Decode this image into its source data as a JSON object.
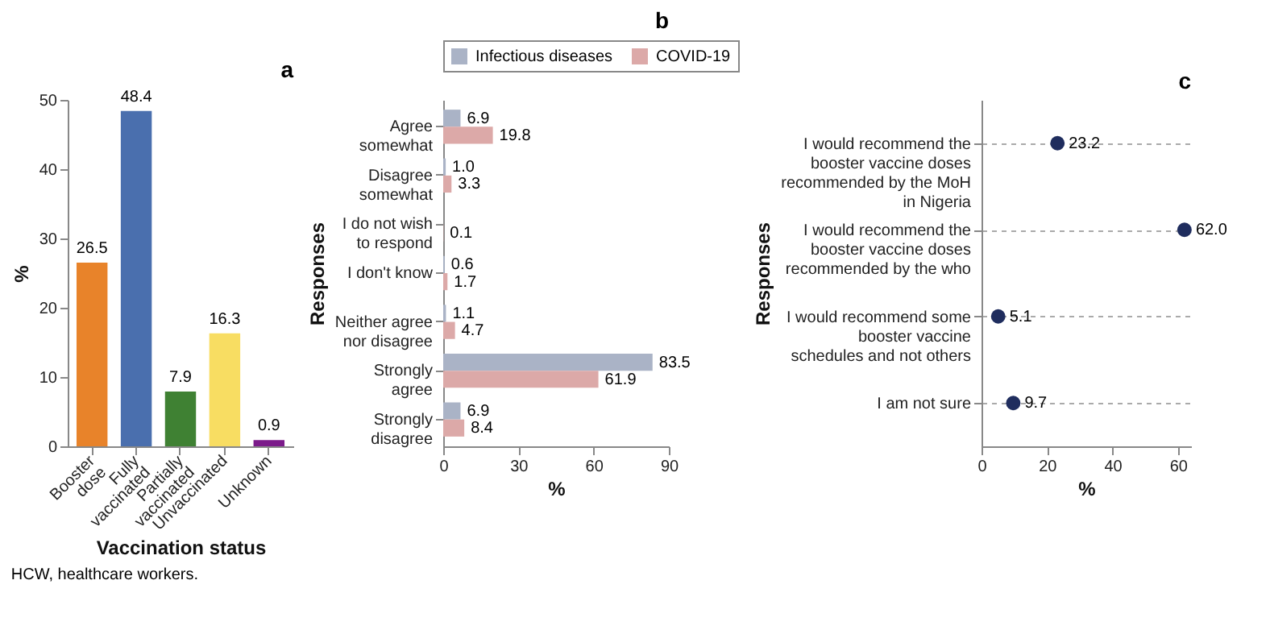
{
  "chart_data": [
    {
      "type": "bar",
      "title": "a",
      "xlabel": "Vaccination status",
      "ylabel": "%",
      "categories": [
        "Booster dose",
        "Fully vaccinated",
        "Partially vaccinated",
        "Unvaccinated",
        "Unknown"
      ],
      "values": [
        26.5,
        48.4,
        7.9,
        16.3,
        0.9
      ],
      "colors": [
        "#e8832a",
        "#4a6fae",
        "#3f8133",
        "#f8dd62",
        "#7b1a8a"
      ],
      "ylim": [
        0,
        50
      ],
      "yticks": [
        0,
        10,
        20,
        30,
        40,
        50
      ],
      "data_labels": true,
      "annotations": [
        "HCW, healthcare workers."
      ]
    },
    {
      "type": "bar",
      "orientation": "horizontal",
      "title": "b",
      "xlabel": "%",
      "ylabel": "Responses",
      "categories": [
        "Agree somewhat",
        "Disagree somewhat",
        "I do not wish to respond",
        "I don't know",
        "Neither agree nor disagree",
        "Strongly agree",
        "Strongly disagree"
      ],
      "series": [
        {
          "name": "Infectious diseases",
          "color": "#aab3c6",
          "values": [
            6.9,
            1.0,
            null,
            0.6,
            1.1,
            83.5,
            6.9
          ],
          "value_labels": [
            "6.9",
            "1.0",
            null,
            "0.6",
            "1.1",
            "83.5",
            "6.9"
          ]
        },
        {
          "name": "COVID-19",
          "color": "#dca9a8",
          "values": [
            19.8,
            3.3,
            0.1,
            1.7,
            4.7,
            61.9,
            8.4
          ],
          "value_labels": [
            "19.8",
            "3.3",
            "0.1",
            "1.7",
            "4.7",
            "61.9",
            "8.4"
          ]
        }
      ],
      "xlim": [
        0,
        90
      ],
      "xticks": [
        0,
        30,
        60,
        90
      ],
      "legend": "top right"
    },
    {
      "type": "scatter",
      "orientation": "horizontal",
      "title": "c",
      "xlabel": "%",
      "ylabel": "Responses",
      "categories": [
        "I would recommend the booster vaccine doses recommended by the MoH in Nigeria",
        "I would recommend the booster vaccine doses recommended by the who",
        "I would recommend some booster vaccine schedules and not others",
        "I am not sure"
      ],
      "series": [
        {
          "color": "#1f2d5e",
          "values": [
            23.2,
            62.0,
            5.1,
            9.7
          ],
          "value_labels": [
            "23.2",
            "62.0",
            "5.1",
            "9.7"
          ]
        }
      ],
      "xlim": [
        0,
        64
      ],
      "xticks": [
        0,
        20,
        40,
        60
      ],
      "grid": "y",
      "marker": "circle"
    }
  ]
}
